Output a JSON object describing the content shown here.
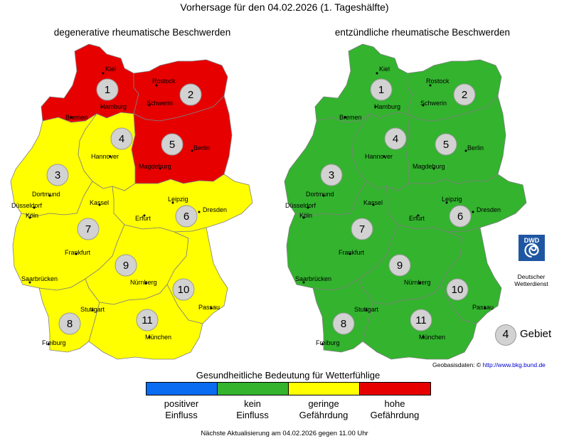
{
  "header": {
    "title": "Vorhersage für den 04.02.2026 (1. Tageshälfte)"
  },
  "maps": [
    {
      "title": "degenerative rheumatische Beschwerden",
      "regions": [
        {
          "id": "1",
          "level": "hohe Gefährdung"
        },
        {
          "id": "2",
          "level": "hohe Gefährdung"
        },
        {
          "id": "3",
          "level": "geringe Gefährdung"
        },
        {
          "id": "4",
          "level": "geringe Gefährdung"
        },
        {
          "id": "5",
          "level": "hohe Gefährdung"
        },
        {
          "id": "6",
          "level": "geringe Gefährdung"
        },
        {
          "id": "7",
          "level": "geringe Gefährdung"
        },
        {
          "id": "8",
          "level": "geringe Gefährdung"
        },
        {
          "id": "9",
          "level": "geringe Gefährdung"
        },
        {
          "id": "10",
          "level": "geringe Gefährdung"
        },
        {
          "id": "11",
          "level": "geringe Gefährdung"
        }
      ]
    },
    {
      "title": "entzündliche rheumatische Beschwerden",
      "regions": [
        {
          "id": "1",
          "level": "kein Einfluss"
        },
        {
          "id": "2",
          "level": "kein Einfluss"
        },
        {
          "id": "3",
          "level": "kein Einfluss"
        },
        {
          "id": "4",
          "level": "kein Einfluss"
        },
        {
          "id": "5",
          "level": "kein Einfluss"
        },
        {
          "id": "6",
          "level": "kein Einfluss"
        },
        {
          "id": "7",
          "level": "kein Einfluss"
        },
        {
          "id": "8",
          "level": "kein Einfluss"
        },
        {
          "id": "9",
          "level": "kein Einfluss"
        },
        {
          "id": "10",
          "level": "kein Einfluss"
        },
        {
          "id": "11",
          "level": "kein Einfluss"
        }
      ]
    }
  ],
  "cities": [
    "Kiel",
    "Rostock",
    "Hamburg",
    "Schwerin",
    "Bremen",
    "Hannover",
    "Berlin",
    "Magdeburg",
    "Dortmund",
    "Düsseldorf",
    "Köln",
    "Kassel",
    "Leipzig",
    "Dresden",
    "Erfurt",
    "Frankfurt",
    "Saarbrücken",
    "Nürnberg",
    "Passau",
    "Stuttgart",
    "München",
    "Freiburg"
  ],
  "legend": {
    "heading": "Gesundheitliche Bedeutung für Wetterfühlige",
    "items": [
      {
        "line1": "positiver",
        "line2": "Einfluss",
        "color": "#0a6cf0"
      },
      {
        "line1": "kein",
        "line2": "Einfluss",
        "color": "#33b32e"
      },
      {
        "line1": "geringe",
        "line2": "Gefährdung",
        "color": "#ffff00"
      },
      {
        "line1": "hohe",
        "line2": "Gefährdung",
        "color": "#e60000"
      }
    ]
  },
  "colors": {
    "hohe Gefährdung": "#e60000",
    "geringe Gefährdung": "#ffff00",
    "kein Einfluss": "#33b32e",
    "positiver Einfluss": "#0a6cf0"
  },
  "region_key": {
    "number": "4",
    "label": "Gebiet"
  },
  "dwd": {
    "logo_text": "DWD",
    "line1": "Deutscher",
    "line2": "Wetterdienst"
  },
  "source": {
    "label": "Geobasisdaten: ©",
    "url": "http://www.bkg.bund.de"
  },
  "footer": "Nächste Aktualisierung am 04.02.2026 gegen 11.00 Uhr"
}
